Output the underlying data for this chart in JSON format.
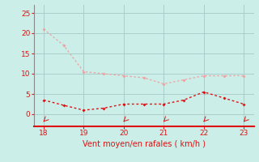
{
  "x_gust": [
    18,
    18.5,
    19,
    19.5,
    20,
    20.5,
    21,
    21.5,
    22,
    22.5,
    23
  ],
  "y_gust": [
    21,
    17,
    10.5,
    10,
    9.5,
    9,
    7.5,
    8.5,
    9.5,
    9.5,
    9.5
  ],
  "x_wind": [
    18,
    18.5,
    19,
    19.5,
    20,
    20.5,
    21,
    21.5,
    22,
    22.5,
    23
  ],
  "y_wind": [
    3.5,
    2.2,
    1.0,
    1.5,
    2.5,
    2.5,
    2.5,
    3.5,
    5.5,
    4.0,
    2.5
  ],
  "x_arrows": [
    18,
    20,
    21,
    22,
    23
  ],
  "xlim": [
    17.75,
    23.25
  ],
  "ylim": [
    -3,
    27
  ],
  "xticks": [
    18,
    19,
    20,
    21,
    22,
    23
  ],
  "yticks": [
    0,
    5,
    10,
    15,
    20,
    25
  ],
  "xlabel": "Vent moyen/en rafales ( km/h )",
  "bg_color": "#cceee8",
  "gust_color": "#f0a0a0",
  "wind_color": "#dd1111",
  "grid_color": "#aacccc",
  "label_color": "#dd1111",
  "tick_color": "#dd1111",
  "spine_color": "#dd1111"
}
